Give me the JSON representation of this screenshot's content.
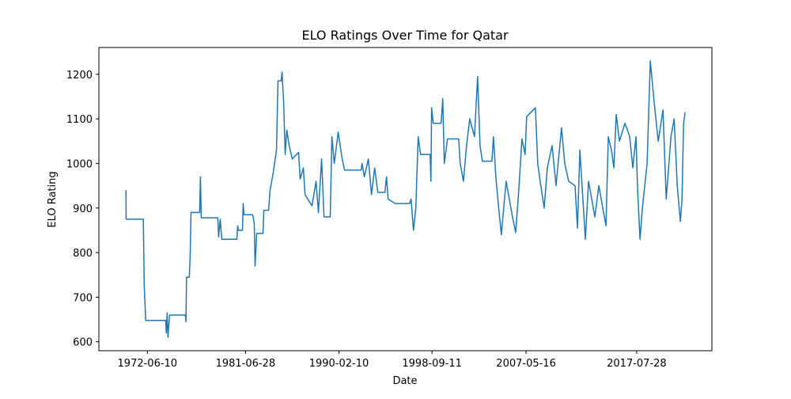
{
  "chart_data": {
    "type": "line",
    "title": "ELO Ratings Over Time for Qatar",
    "x_label": "Date",
    "y_label": "ELO Rating",
    "x": [
      "1970-06-20",
      "1970-06-25",
      "1972-01-25",
      "1972-02-25",
      "1972-04-15",
      "1974-02-15",
      "1974-03-10",
      "1974-04-08",
      "1974-05-05",
      "1974-06-28",
      "1975-12-12",
      "1976-01-01",
      "1976-01-20",
      "1976-04-22",
      "1976-05-20",
      "1976-06-18",
      "1977-04-05",
      "1977-05-01",
      "1977-05-30",
      "1978-12-10",
      "1979-01-05",
      "1979-03-01",
      "1979-04-22",
      "1980-09-10",
      "1980-10-08",
      "1980-11-02",
      "1981-03-18",
      "1981-04-12",
      "1981-05-08",
      "1982-02-28",
      "1982-04-20",
      "1982-05-18",
      "1982-07-10",
      "1983-02-08",
      "1983-03-08",
      "1983-08-15",
      "1983-10-05",
      "1983-11-28",
      "1984-01-20",
      "1984-05-08",
      "1984-06-28",
      "1984-10-12",
      "1984-11-10",
      "1985-01-02",
      "1985-02-25",
      "1985-04-20",
      "1985-07-08",
      "1985-10-22",
      "1986-05-22",
      "1986-07-15",
      "1986-10-30",
      "1986-12-25",
      "1987-08-18",
      "1988-01-01",
      "1988-03-20",
      "1988-07-05",
      "1988-09-25",
      "1989-04-22",
      "1989-06-18",
      "1989-09-05",
      "1990-01-15",
      "1990-05-30",
      "1990-08-18",
      "1992-02-28",
      "1992-03-28",
      "1992-06-15",
      "1992-10-28",
      "1993-02-10",
      "1993-05-28",
      "1993-09-12",
      "1994-05-08",
      "1994-07-01",
      "1994-08-25",
      "1995-04-20",
      "1996-08-15",
      "1996-10-05",
      "1996-12-25",
      "1997-03-15",
      "1997-06-02",
      "1997-08-22",
      "1998-07-10",
      "1998-08-05",
      "1998-08-28",
      "1998-10-22",
      "1999-07-15",
      "1999-09-08",
      "1999-10-30",
      "2000-02-15",
      "2001-02-25",
      "2001-04-18",
      "2001-08-05",
      "2001-11-18",
      "2002-03-05",
      "2002-08-12",
      "2002-11-25",
      "2003-02-15",
      "2003-05-05",
      "2004-03-20",
      "2004-05-12",
      "2004-08-01",
      "2004-10-20",
      "2005-02-02",
      "2005-07-12",
      "2006-02-12",
      "2006-05-30",
      "2006-09-12",
      "2006-12-28",
      "2007-04-12",
      "2007-06-05",
      "2008-03-25",
      "2008-06-12",
      "2008-09-01",
      "2009-01-15",
      "2009-05-01",
      "2009-10-08",
      "2010-02-18",
      "2010-08-22",
      "2010-12-08",
      "2011-04-20",
      "2011-11-20",
      "2012-02-10",
      "2012-05-01",
      "2012-11-02",
      "2013-02-18",
      "2013-09-18",
      "2014-01-30",
      "2014-08-05",
      "2014-09-28",
      "2014-12-15",
      "2015-04-01",
      "2015-06-20",
      "2015-09-08",
      "2015-12-25",
      "2016-06-28",
      "2016-12-05",
      "2017-03-20",
      "2017-07-05",
      "2017-08-28",
      "2017-11-18",
      "2018-02-05",
      "2018-07-15",
      "2018-10-30",
      "2019-03-12",
      "2019-07-25",
      "2020-01-01",
      "2020-04-18",
      "2020-09-25",
      "2021-01-10",
      "2021-04-25",
      "2021-08-08",
      "2021-10-02",
      "2021-11-25",
      "2022-01-15"
    ],
    "series": [
      {
        "color": "#1f77b4",
        "values": [
          940,
          875,
          875,
          727,
          648,
          648,
          620,
          665,
          610,
          660,
          660,
          645,
          745,
          745,
          790,
          890,
          890,
          970,
          878,
          878,
          835,
          875,
          830,
          830,
          860,
          850,
          850,
          910,
          885,
          885,
          865,
          770,
          843,
          843,
          895,
          895,
          940,
          960,
          980,
          1030,
          1185,
          1185,
          1205,
          1140,
          1020,
          1075,
          1040,
          1010,
          1025,
          965,
          990,
          930,
          905,
          960,
          890,
          1010,
          880,
          880,
          1060,
          1000,
          1070,
          1010,
          985,
          985,
          1000,
          970,
          1010,
          930,
          990,
          935,
          935,
          970,
          920,
          910,
          910,
          920,
          850,
          900,
          1060,
          1020,
          1020,
          960,
          1125,
          1090,
          1090,
          1145,
          1000,
          1055,
          1055,
          1000,
          960,
          1040,
          1100,
          1060,
          1195,
          1040,
          1005,
          1005,
          1060,
          970,
          910,
          840,
          960,
          880,
          845,
          940,
          1055,
          1020,
          1105,
          1125,
          1000,
          960,
          900,
          990,
          1040,
          950,
          1080,
          1000,
          960,
          950,
          855,
          1030,
          830,
          960,
          880,
          950,
          880,
          860,
          1060,
          1030,
          990,
          1110,
          1050,
          1090,
          1060,
          990,
          1060,
          940,
          830,
          900,
          1000,
          1230,
          1135,
          1050,
          1120,
          920,
          1060,
          1100,
          950,
          870,
          920,
          1090,
          1115
        ]
      }
    ],
    "xlim": [
      "1967-12-20",
      "2024-07-05"
    ],
    "xticks": [
      "1972-06-10",
      "1981-06-28",
      "1990-02-10",
      "1998-09-11",
      "2007-05-16",
      "2017-07-28"
    ],
    "ylim": [
      580,
      1260
    ],
    "yticks": [
      600,
      700,
      800,
      900,
      1000,
      1100,
      1200
    ]
  }
}
